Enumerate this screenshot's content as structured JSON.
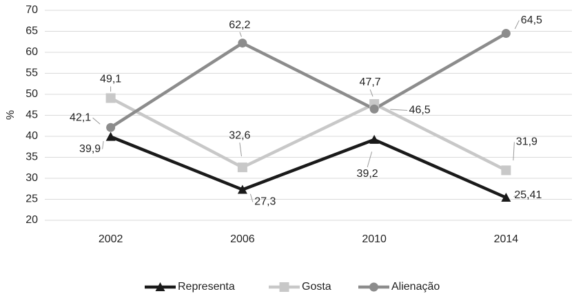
{
  "chart_data": {
    "type": "line",
    "y_label": "%",
    "categories": [
      "2002",
      "2006",
      "2010",
      "2014"
    ],
    "series": [
      {
        "name": "Representa",
        "color": "#1a1a1a",
        "marker": "triangle",
        "values": [
          39.9,
          27.3,
          39.2,
          25.41
        ],
        "value_labels": [
          "39,9",
          "27,3",
          "39,2",
          "25,41"
        ]
      },
      {
        "name": "Gosta",
        "color": "#c8c8c8",
        "marker": "square",
        "values": [
          49.1,
          32.6,
          47.7,
          31.9
        ],
        "value_labels": [
          "49,1",
          "32,6",
          "47,7",
          "31,9"
        ]
      },
      {
        "name": "Alienação",
        "color": "#8c8c8c",
        "marker": "circle",
        "values": [
          42.1,
          62.2,
          46.5,
          64.5
        ],
        "value_labels": [
          "42,1",
          "62,2",
          "46,5",
          "64,5"
        ]
      }
    ],
    "ylim": [
      20,
      70
    ],
    "yticks": [
      20,
      25,
      30,
      35,
      40,
      45,
      50,
      55,
      60,
      65,
      70
    ],
    "grid": true,
    "legend": "bottom"
  }
}
